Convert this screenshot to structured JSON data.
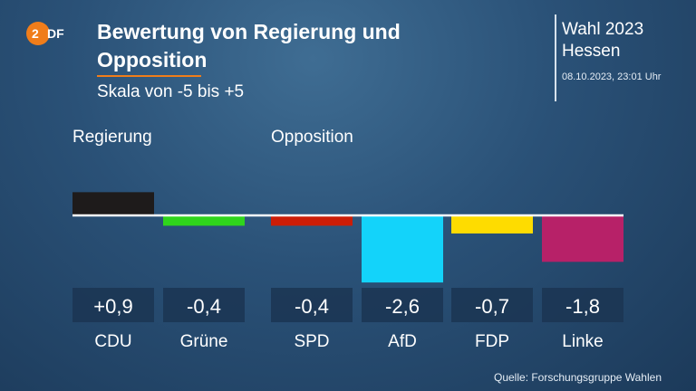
{
  "header": {
    "title_line1": "Bewertung von Regierung und",
    "title_line2": "Opposition",
    "subtitle": "Skala von -5 bis +5",
    "logo_text": "ZDF"
  },
  "election": {
    "line1": "Wahl 2023",
    "line2": "Hessen",
    "datetime": "08.10.2023, 23:01 Uhr"
  },
  "groups": {
    "government": "Regierung",
    "opposition": "Opposition"
  },
  "footer": {
    "source": "Quelle: Forschungsgruppe Wahlen"
  },
  "chart_data": {
    "type": "bar",
    "categories": [
      "CDU",
      "Grüne",
      "SPD",
      "AfD",
      "FDP",
      "Linke"
    ],
    "values": [
      0.9,
      -0.4,
      -0.4,
      -2.6,
      -0.7,
      -1.8
    ],
    "value_labels": [
      "+0,9",
      "-0,4",
      "-0,4",
      "-2,6",
      "-0,7",
      "-1,8"
    ],
    "groups": [
      "government",
      "government",
      "opposition",
      "opposition",
      "opposition",
      "opposition"
    ],
    "colors": [
      "#1e1b1b",
      "#2fd51c",
      "#cc1d07",
      "#13d3fa",
      "#fedc00",
      "#b72168"
    ],
    "scale": [
      -5,
      5
    ],
    "title": "Bewertung von Regierung und Opposition",
    "subtitle": "Skala von -5 bis +5"
  }
}
